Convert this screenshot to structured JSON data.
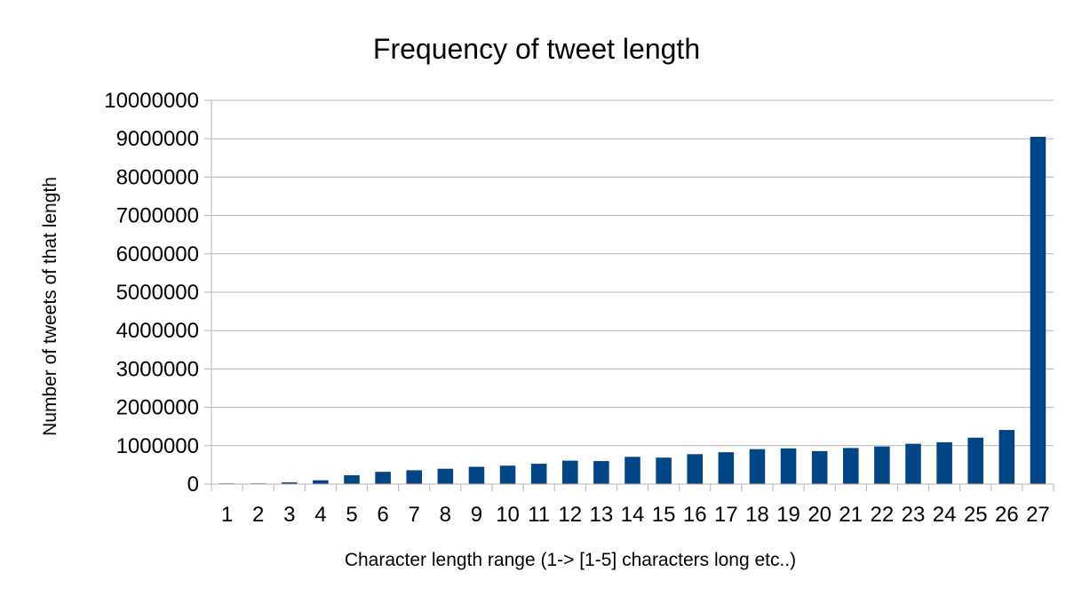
{
  "chart_data": {
    "type": "bar",
    "title": "Frequency of tweet length",
    "xlabel": "Character length range (1-> [1-5] characters long etc..)",
    "ylabel": "Number of tweets of that length",
    "categories": [
      "1",
      "2",
      "3",
      "4",
      "5",
      "6",
      "7",
      "8",
      "9",
      "10",
      "11",
      "12",
      "13",
      "14",
      "15",
      "16",
      "17",
      "18",
      "19",
      "20",
      "21",
      "22",
      "23",
      "24",
      "25",
      "26",
      "27"
    ],
    "values": [
      10000,
      15000,
      45000,
      100000,
      230000,
      320000,
      360000,
      400000,
      450000,
      480000,
      530000,
      610000,
      600000,
      710000,
      690000,
      780000,
      830000,
      910000,
      930000,
      860000,
      940000,
      980000,
      1050000,
      1090000,
      1210000,
      1410000,
      9050000
    ],
    "ylim": [
      0,
      10000000
    ],
    "yticks": [
      "0",
      "1000000",
      "2000000",
      "3000000",
      "4000000",
      "5000000",
      "6000000",
      "7000000",
      "8000000",
      "9000000",
      "10000000"
    ],
    "grid": true,
    "legend": "none",
    "bar_color": "#004586",
    "grid_color": "#b3b3b3"
  }
}
